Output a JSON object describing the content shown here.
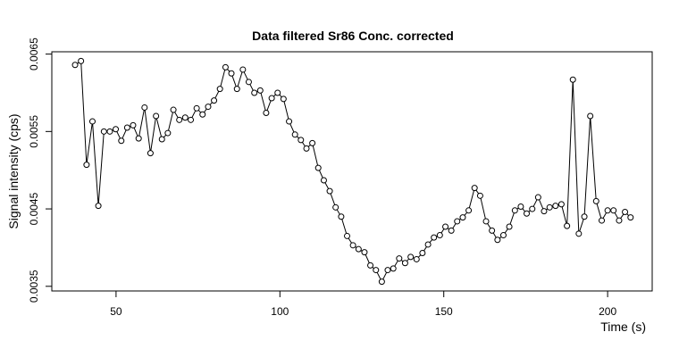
{
  "chart_data": {
    "type": "line",
    "title": "Data filtered Sr86 Conc. corrected",
    "x_label": "Time (s)",
    "y_label": "Signal intensity (cps)",
    "color": "#000000",
    "x": [
      37.5,
      39.3,
      41.0,
      42.8,
      44.6,
      46.3,
      48.1,
      49.9,
      51.6,
      53.4,
      55.2,
      56.9,
      58.7,
      60.5,
      62.2,
      64.0,
      65.8,
      67.5,
      69.3,
      71.1,
      72.8,
      74.6,
      76.4,
      78.1,
      79.9,
      81.7,
      83.4,
      85.2,
      86.9,
      88.7,
      90.5,
      92.2,
      94.0,
      95.8,
      97.5,
      99.3,
      101.1,
      102.8,
      104.6,
      106.4,
      108.1,
      109.9,
      111.7,
      113.4,
      115.2,
      117.0,
      118.7,
      120.5,
      122.3,
      124.0,
      125.8,
      127.6,
      129.3,
      131.1,
      132.9,
      134.6,
      136.4,
      138.2,
      139.9,
      141.7,
      143.5,
      145.2,
      147.0,
      148.8,
      150.5,
      152.3,
      154.1,
      155.8,
      157.6,
      159.4,
      161.1,
      162.9,
      164.7,
      166.4,
      168.2,
      170.0,
      171.7,
      173.5,
      175.3,
      177.0,
      178.8,
      180.6,
      182.3,
      184.1,
      185.9,
      187.6,
      189.4,
      191.2,
      192.9,
      194.7,
      196.5,
      198.2,
      200.0,
      201.8,
      203.5,
      205.3,
      207.0
    ],
    "values": [
      0.00636,
      0.00641,
      0.00507,
      0.00563,
      0.00454,
      0.0055,
      0.0055,
      0.00553,
      0.00538,
      0.00555,
      0.00558,
      0.00541,
      0.00581,
      0.00522,
      0.0057,
      0.0054,
      0.00548,
      0.00578,
      0.00565,
      0.00568,
      0.00565,
      0.0058,
      0.00572,
      0.00582,
      0.0059,
      0.00605,
      0.00633,
      0.00625,
      0.00605,
      0.0063,
      0.00614,
      0.006,
      0.00603,
      0.00574,
      0.00593,
      0.006,
      0.00592,
      0.00563,
      0.00546,
      0.00539,
      0.00528,
      0.00535,
      0.00503,
      0.00487,
      0.00473,
      0.00452,
      0.0044,
      0.00415,
      0.00403,
      0.00398,
      0.00394,
      0.00377,
      0.00371,
      0.00356,
      0.00371,
      0.00373,
      0.00386,
      0.0038,
      0.00388,
      0.00385,
      0.00393,
      0.00404,
      0.00413,
      0.00416,
      0.00427,
      0.00422,
      0.00434,
      0.00439,
      0.00448,
      0.00477,
      0.00467,
      0.00434,
      0.00422,
      0.0041,
      0.00416,
      0.00427,
      0.00448,
      0.00453,
      0.00444,
      0.0045,
      0.00465,
      0.00447,
      0.00452,
      0.00454,
      0.00456,
      0.00428,
      0.00617,
      0.00418,
      0.0044,
      0.0057,
      0.0046,
      0.00435,
      0.00448,
      0.00448,
      0.00435,
      0.00446,
      0.00439
    ],
    "xlim": [
      30.4,
      213.6
    ],
    "ylim": [
      0.00344,
      0.00653
    ],
    "xticks": [
      50,
      100,
      150,
      200
    ],
    "yticks": [
      0.0035,
      0.0045,
      0.0055,
      0.0065
    ]
  }
}
